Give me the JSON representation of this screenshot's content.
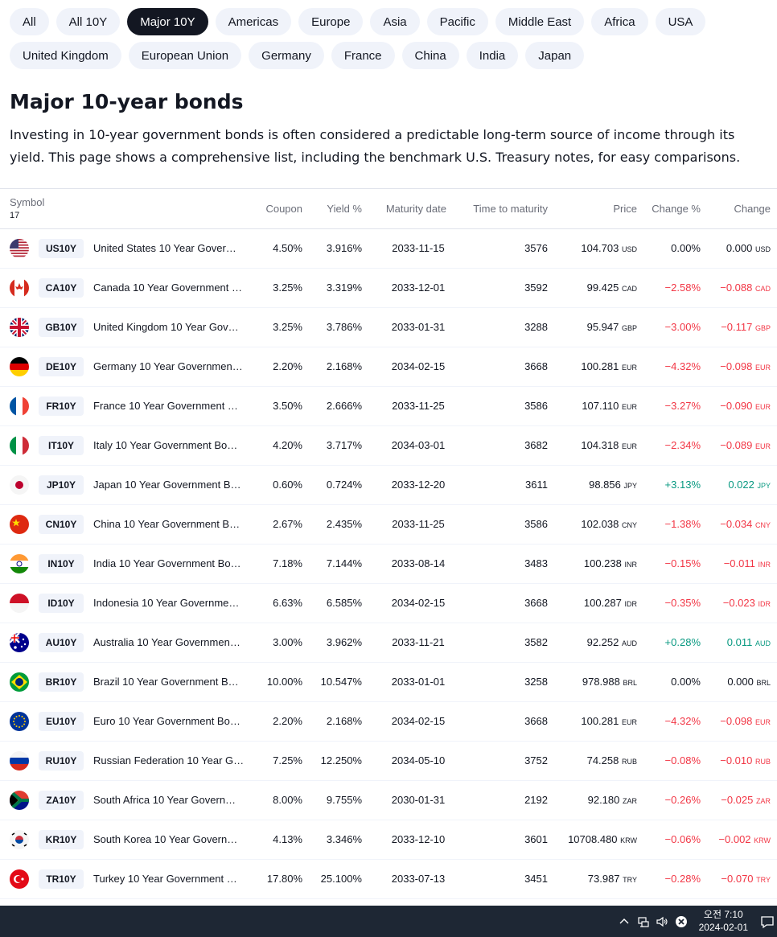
{
  "filters": {
    "row1": [
      "All",
      "All 10Y",
      "Major 10Y",
      "Americas",
      "Europe",
      "Asia",
      "Pacific",
      "Middle East",
      "Africa",
      "USA"
    ],
    "row2": [
      "United Kingdom",
      "European Union",
      "Germany",
      "France",
      "China",
      "India",
      "Japan"
    ],
    "active": "Major 10Y"
  },
  "page": {
    "title": "Major 10-year bonds",
    "description": "Investing in 10-year government bonds is often considered a predictable long-term source of income through its yield. This page shows a comprehensive list, including the benchmark U.S. Treasury notes, for easy comparisons."
  },
  "table": {
    "headers": {
      "symbol": "Symbol",
      "count": "17",
      "coupon": "Coupon",
      "yield": "Yield %",
      "maturity": "Maturity date",
      "ttm": "Time to maturity",
      "price": "Price",
      "change_pct": "Change %",
      "change": "Change"
    },
    "rows": [
      {
        "flag": "us",
        "ticker": "US10Y",
        "name": "United States 10 Year Gover…",
        "coupon": "4.50%",
        "yield": "3.916%",
        "maturity": "2033-11-15",
        "ttm": "3576",
        "price": "104.703",
        "cur": "USD",
        "chg_pct": "0.00%",
        "chg": "0.000",
        "dir": "flat"
      },
      {
        "flag": "ca",
        "ticker": "CA10Y",
        "name": "Canada 10 Year Government …",
        "coupon": "3.25%",
        "yield": "3.319%",
        "maturity": "2033-12-01",
        "ttm": "3592",
        "price": "99.425",
        "cur": "CAD",
        "chg_pct": "−2.58%",
        "chg": "−0.088",
        "dir": "neg"
      },
      {
        "flag": "gb",
        "ticker": "GB10Y",
        "name": "United Kingdom 10 Year Gov…",
        "coupon": "3.25%",
        "yield": "3.786%",
        "maturity": "2033-01-31",
        "ttm": "3288",
        "price": "95.947",
        "cur": "GBP",
        "chg_pct": "−3.00%",
        "chg": "−0.117",
        "dir": "neg"
      },
      {
        "flag": "de",
        "ticker": "DE10Y",
        "name": "Germany 10 Year Governmen…",
        "coupon": "2.20%",
        "yield": "2.168%",
        "maturity": "2034-02-15",
        "ttm": "3668",
        "price": "100.281",
        "cur": "EUR",
        "chg_pct": "−4.32%",
        "chg": "−0.098",
        "dir": "neg"
      },
      {
        "flag": "fr",
        "ticker": "FR10Y",
        "name": "France 10 Year Government …",
        "coupon": "3.50%",
        "yield": "2.666%",
        "maturity": "2033-11-25",
        "ttm": "3586",
        "price": "107.110",
        "cur": "EUR",
        "chg_pct": "−3.27%",
        "chg": "−0.090",
        "dir": "neg"
      },
      {
        "flag": "it",
        "ticker": "IT10Y",
        "name": "Italy 10 Year Government Bo…",
        "coupon": "4.20%",
        "yield": "3.717%",
        "maturity": "2034-03-01",
        "ttm": "3682",
        "price": "104.318",
        "cur": "EUR",
        "chg_pct": "−2.34%",
        "chg": "−0.089",
        "dir": "neg"
      },
      {
        "flag": "jp",
        "ticker": "JP10Y",
        "name": "Japan 10 Year Government B…",
        "coupon": "0.60%",
        "yield": "0.724%",
        "maturity": "2033-12-20",
        "ttm": "3611",
        "price": "98.856",
        "cur": "JPY",
        "chg_pct": "+3.13%",
        "chg": "0.022",
        "dir": "pos"
      },
      {
        "flag": "cn",
        "ticker": "CN10Y",
        "name": "China 10 Year Government B…",
        "coupon": "2.67%",
        "yield": "2.435%",
        "maturity": "2033-11-25",
        "ttm": "3586",
        "price": "102.038",
        "cur": "CNY",
        "chg_pct": "−1.38%",
        "chg": "−0.034",
        "dir": "neg"
      },
      {
        "flag": "in",
        "ticker": "IN10Y",
        "name": "India 10 Year Government Bo…",
        "coupon": "7.18%",
        "yield": "7.144%",
        "maturity": "2033-08-14",
        "ttm": "3483",
        "price": "100.238",
        "cur": "INR",
        "chg_pct": "−0.15%",
        "chg": "−0.011",
        "dir": "neg"
      },
      {
        "flag": "id",
        "ticker": "ID10Y",
        "name": "Indonesia 10 Year Governme…",
        "coupon": "6.63%",
        "yield": "6.585%",
        "maturity": "2034-02-15",
        "ttm": "3668",
        "price": "100.287",
        "cur": "IDR",
        "chg_pct": "−0.35%",
        "chg": "−0.023",
        "dir": "neg"
      },
      {
        "flag": "au",
        "ticker": "AU10Y",
        "name": "Australia 10 Year Governmen…",
        "coupon": "3.00%",
        "yield": "3.962%",
        "maturity": "2033-11-21",
        "ttm": "3582",
        "price": "92.252",
        "cur": "AUD",
        "chg_pct": "+0.28%",
        "chg": "0.011",
        "dir": "pos"
      },
      {
        "flag": "br",
        "ticker": "BR10Y",
        "name": "Brazil 10 Year Government B…",
        "coupon": "10.00%",
        "yield": "10.547%",
        "maturity": "2033-01-01",
        "ttm": "3258",
        "price": "978.988",
        "cur": "BRL",
        "chg_pct": "0.00%",
        "chg": "0.000",
        "dir": "flat"
      },
      {
        "flag": "eu",
        "ticker": "EU10Y",
        "name": "Euro 10 Year Government Bo…",
        "coupon": "2.20%",
        "yield": "2.168%",
        "maturity": "2034-02-15",
        "ttm": "3668",
        "price": "100.281",
        "cur": "EUR",
        "chg_pct": "−4.32%",
        "chg": "−0.098",
        "dir": "neg"
      },
      {
        "flag": "ru",
        "ticker": "RU10Y",
        "name": "Russian Federation 10 Year G…",
        "coupon": "7.25%",
        "yield": "12.250%",
        "maturity": "2034-05-10",
        "ttm": "3752",
        "price": "74.258",
        "cur": "RUB",
        "chg_pct": "−0.08%",
        "chg": "−0.010",
        "dir": "neg"
      },
      {
        "flag": "za",
        "ticker": "ZA10Y",
        "name": "South Africa 10 Year Govern…",
        "coupon": "8.00%",
        "yield": "9.755%",
        "maturity": "2030-01-31",
        "ttm": "2192",
        "price": "92.180",
        "cur": "ZAR",
        "chg_pct": "−0.26%",
        "chg": "−0.025",
        "dir": "neg"
      },
      {
        "flag": "kr",
        "ticker": "KR10Y",
        "name": "South Korea 10 Year Govern…",
        "coupon": "4.13%",
        "yield": "3.346%",
        "maturity": "2033-12-10",
        "ttm": "3601",
        "price": "10708.480",
        "cur": "KRW",
        "chg_pct": "−0.06%",
        "chg": "−0.002",
        "dir": "neg"
      },
      {
        "flag": "tr",
        "ticker": "TR10Y",
        "name": "Turkey 10 Year Government …",
        "coupon": "17.80%",
        "yield": "25.100%",
        "maturity": "2033-07-13",
        "ttm": "3451",
        "price": "73.987",
        "cur": "TRY",
        "chg_pct": "−0.28%",
        "chg": "−0.070",
        "dir": "neg"
      }
    ]
  },
  "taskbar": {
    "time": "오전 7:10",
    "date": "2024-02-01",
    "icons": [
      "chevron-up-icon",
      "network-icon",
      "volume-icon",
      "close-circle-icon",
      "notification-icon"
    ]
  },
  "colors": {
    "positive": "#089981",
    "negative": "#f23645",
    "pill_active": "#131722",
    "pill_bg": "#f0f3fa"
  }
}
